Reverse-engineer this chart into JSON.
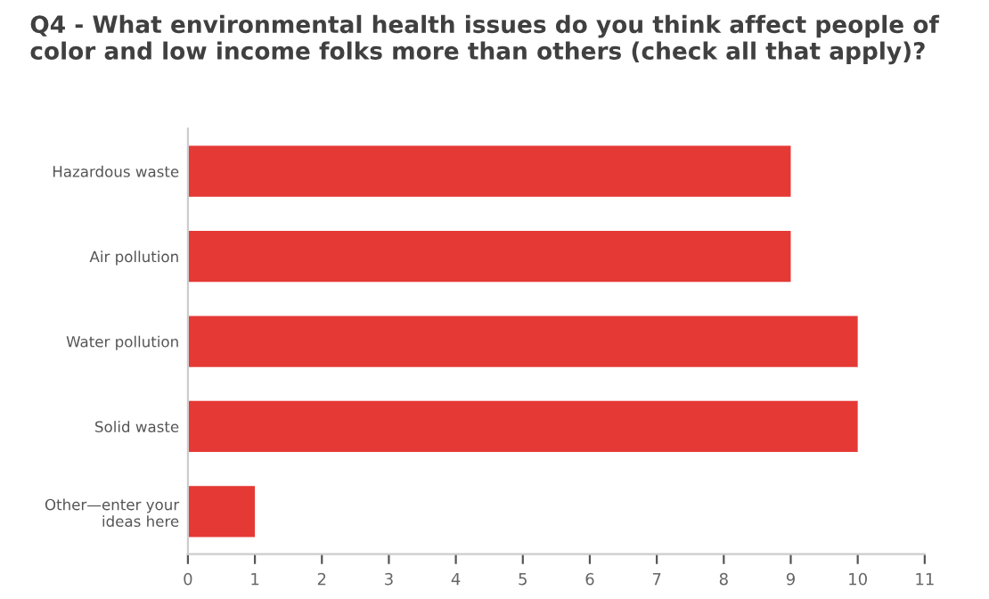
{
  "chart_data": {
    "type": "bar",
    "orientation": "horizontal",
    "title": "Q4 - What environmental health issues do you think affect people of color and low income folks more than others (check all that apply)?",
    "categories": [
      "Hazardous waste",
      "Air pollution",
      "Water pollution",
      "Solid waste",
      "Other—enter your\nideas here"
    ],
    "values": [
      9,
      9,
      10,
      10,
      1
    ],
    "color": "#e53935",
    "xlim": [
      0,
      11
    ],
    "xticks": [
      0,
      1,
      2,
      3,
      4,
      5,
      6,
      7,
      8,
      9,
      10,
      11
    ],
    "grid": false,
    "legend": false
  }
}
